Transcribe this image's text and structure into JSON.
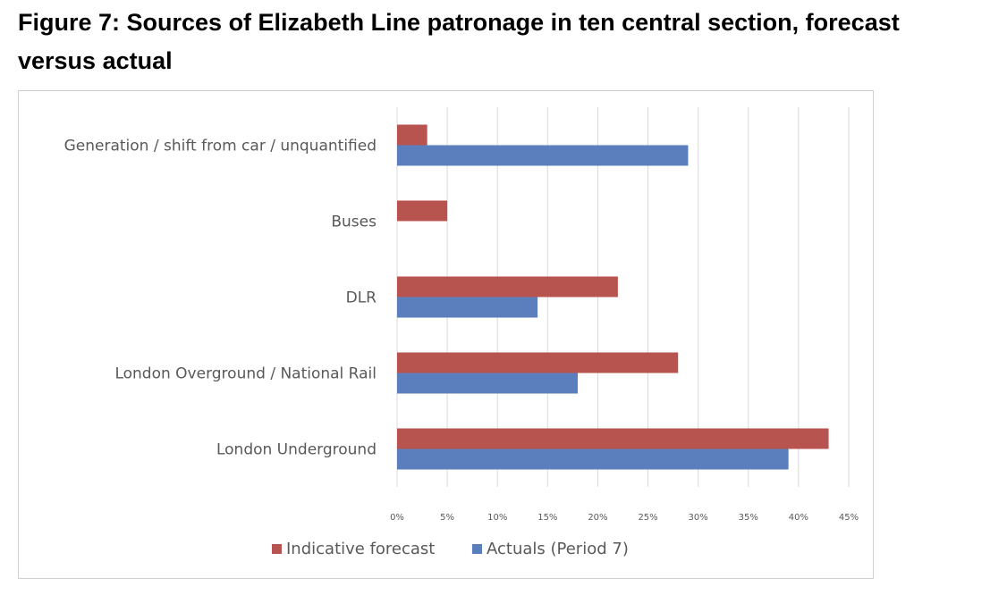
{
  "figure": {
    "title": "Figure 7: Sources of Elizabeth Line patronage in ten central section, forecast versus actual",
    "title_line1": "Figure 7: Sources of Elizabeth Line patronage in ten central section, forecast",
    "title_line2": "versus actual"
  },
  "chart_data": {
    "type": "bar",
    "orientation": "horizontal",
    "title": "",
    "xlabel": "",
    "ylabel": "",
    "categories": [
      "Generation / shift from car / unquantified",
      "Buses",
      "DLR",
      "London Overground / National Rail",
      "London Underground"
    ],
    "series": [
      {
        "name": "Indicative forecast",
        "color": "#b85450",
        "values": [
          3,
          5,
          22,
          28,
          43
        ]
      },
      {
        "name": "Actuals (Period 7)",
        "color": "#5b7fbd",
        "values": [
          29,
          0,
          14,
          18,
          39
        ]
      }
    ],
    "xlim": [
      0,
      45
    ],
    "xticks": [
      0,
      5,
      10,
      15,
      20,
      25,
      30,
      35,
      40,
      45
    ],
    "xtick_labels": [
      "0%",
      "5%",
      "10%",
      "15%",
      "20%",
      "25%",
      "30%",
      "35%",
      "40%",
      "45%"
    ],
    "grid": "vertical",
    "gridline_color": "#d9d9d9",
    "legend": "bottom-center"
  }
}
